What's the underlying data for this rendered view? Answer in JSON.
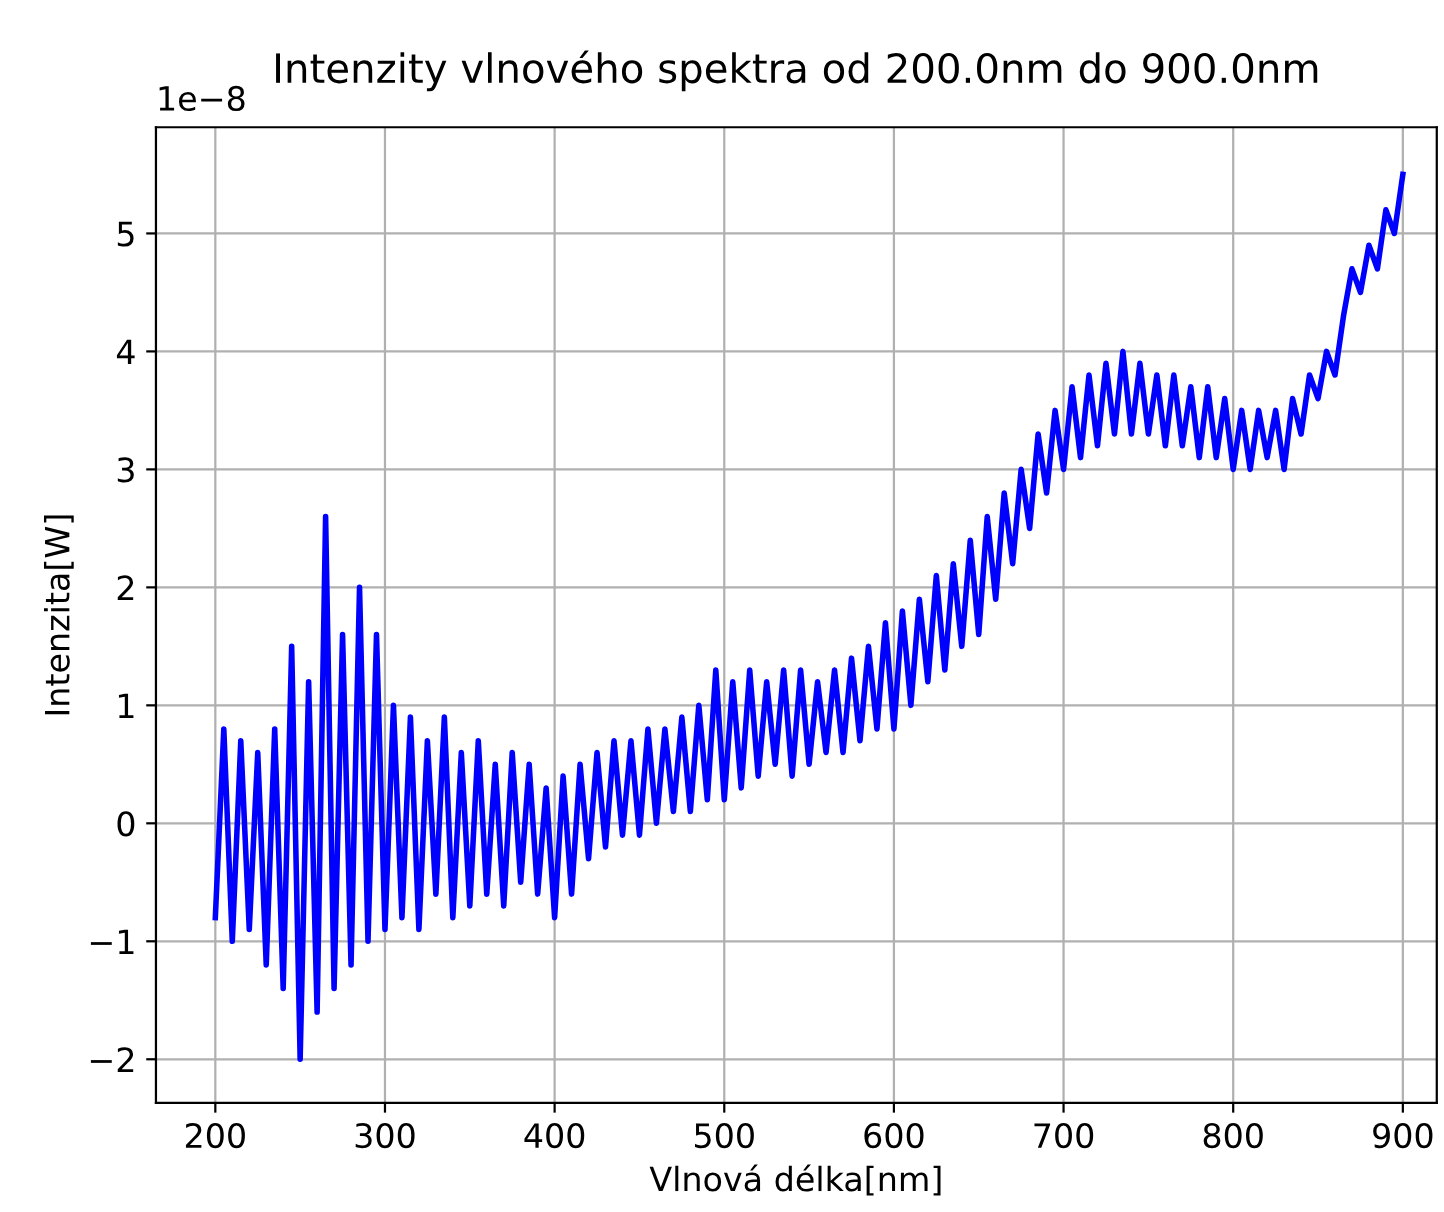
{
  "chart_data": {
    "type": "line",
    "title": "Intenzity vlnového spektra od 200.0nm do 900.0nm",
    "xlabel": "Vlnová délka[nm]",
    "ylabel": "Intenzita[W]",
    "annotations": [
      "1e−8"
    ],
    "x": [
      200,
      205,
      210,
      215,
      220,
      225,
      230,
      235,
      240,
      245,
      250,
      255,
      260,
      265,
      270,
      275,
      280,
      285,
      290,
      295,
      300,
      305,
      310,
      315,
      320,
      325,
      330,
      335,
      340,
      345,
      350,
      355,
      360,
      365,
      370,
      375,
      380,
      385,
      390,
      395,
      400,
      405,
      410,
      415,
      420,
      425,
      430,
      435,
      440,
      445,
      450,
      455,
      460,
      465,
      470,
      475,
      480,
      485,
      490,
      495,
      500,
      505,
      510,
      515,
      520,
      525,
      530,
      535,
      540,
      545,
      550,
      555,
      560,
      565,
      570,
      575,
      580,
      585,
      590,
      595,
      600,
      605,
      610,
      615,
      620,
      625,
      630,
      635,
      640,
      645,
      650,
      655,
      660,
      665,
      670,
      675,
      680,
      685,
      690,
      695,
      700,
      705,
      710,
      715,
      720,
      725,
      730,
      735,
      740,
      745,
      750,
      755,
      760,
      765,
      770,
      775,
      780,
      785,
      790,
      795,
      800,
      805,
      810,
      815,
      820,
      825,
      830,
      835,
      840,
      845,
      850,
      855,
      860,
      865,
      870,
      875,
      880,
      885,
      890,
      895,
      900
    ],
    "series": [
      {
        "color": "#0000ff",
        "values": [
          -0.8,
          0.8,
          -1.0,
          0.7,
          -0.9,
          0.6,
          -1.2,
          0.8,
          -1.4,
          1.5,
          -2.0,
          1.2,
          -1.6,
          2.6,
          -1.4,
          1.6,
          -1.2,
          2.0,
          -1.0,
          1.6,
          -0.9,
          1.0,
          -0.8,
          0.9,
          -0.9,
          0.7,
          -0.6,
          0.9,
          -0.8,
          0.6,
          -0.7,
          0.7,
          -0.6,
          0.5,
          -0.7,
          0.6,
          -0.5,
          0.5,
          -0.6,
          0.3,
          -0.8,
          0.4,
          -0.6,
          0.5,
          -0.3,
          0.6,
          -0.2,
          0.7,
          -0.1,
          0.7,
          -0.1,
          0.8,
          0.0,
          0.8,
          0.1,
          0.9,
          0.1,
          1.0,
          0.2,
          1.3,
          0.2,
          1.2,
          0.3,
          1.3,
          0.4,
          1.2,
          0.5,
          1.3,
          0.4,
          1.3,
          0.5,
          1.2,
          0.6,
          1.3,
          0.6,
          1.4,
          0.7,
          1.5,
          0.8,
          1.7,
          0.8,
          1.8,
          1.0,
          1.9,
          1.2,
          2.1,
          1.3,
          2.2,
          1.5,
          2.4,
          1.6,
          2.6,
          1.9,
          2.8,
          2.2,
          3.0,
          2.5,
          3.3,
          2.8,
          3.5,
          3.0,
          3.7,
          3.1,
          3.8,
          3.2,
          3.9,
          3.3,
          4.0,
          3.3,
          3.9,
          3.3,
          3.8,
          3.2,
          3.8,
          3.2,
          3.7,
          3.1,
          3.7,
          3.1,
          3.6,
          3.0,
          3.5,
          3.0,
          3.5,
          3.1,
          3.5,
          3.0,
          3.6,
          3.3,
          3.8,
          3.6,
          4.0,
          3.8,
          4.3,
          4.7,
          4.5,
          4.9,
          4.7,
          5.2,
          5.0,
          5.5
        ]
      }
    ],
    "xlim": [
      165,
      920
    ],
    "ylim": [
      -2.37,
      5.9
    ],
    "xticks": [
      200,
      300,
      400,
      500,
      600,
      700,
      800,
      900
    ],
    "yticks": [
      {
        "value": -2,
        "label": "−2"
      },
      {
        "value": -1,
        "label": "−1"
      },
      0,
      1,
      2,
      3,
      4,
      5
    ],
    "grid": true,
    "legend": false,
    "marker": "none",
    "line_style": "solid"
  }
}
